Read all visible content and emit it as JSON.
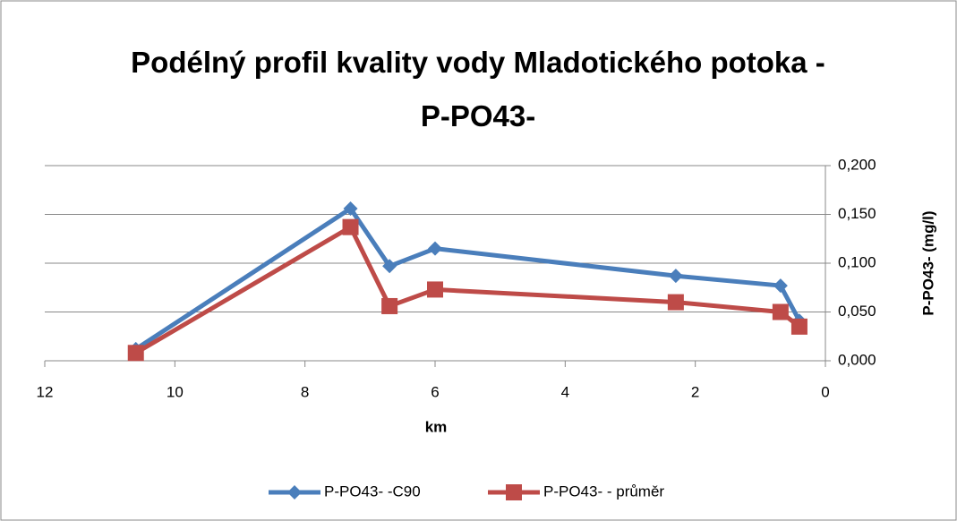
{
  "chart_data": {
    "type": "line",
    "title": "Podélný profil kvality vody Mladotického potoka - P-PO43-",
    "x_label": "km",
    "y_label": "P-PO43- (mg/l)",
    "x": [
      10.6,
      7.3,
      6.7,
      6.0,
      2.3,
      0.69,
      0.4
    ],
    "series": [
      {
        "name": "P-PO43- -C90",
        "color": "#4a7ebb",
        "marker": "diamond",
        "values": [
          0.012,
          0.156,
          0.097,
          0.115,
          0.087,
          0.077,
          0.041
        ]
      },
      {
        "name": "P-PO43- - průměr",
        "color": "#be4b48",
        "marker": "square",
        "values": [
          0.008,
          0.137,
          0.056,
          0.073,
          0.06,
          0.05,
          0.035
        ]
      }
    ],
    "xlim": [
      12,
      0
    ],
    "xticks": [
      12,
      10,
      8,
      6,
      4,
      2,
      0
    ],
    "ylim": [
      0,
      0.2
    ],
    "yticks": [
      {
        "value": 0,
        "label": "0,000"
      },
      {
        "value": 0.05,
        "label": "0,050"
      },
      {
        "value": 0.1,
        "label": "0,100"
      },
      {
        "value": 0.15,
        "label": "0,150"
      },
      {
        "value": 0.2,
        "label": "0,200"
      }
    ],
    "y_axis_side": "right",
    "grid": true,
    "legend": "bottom"
  }
}
